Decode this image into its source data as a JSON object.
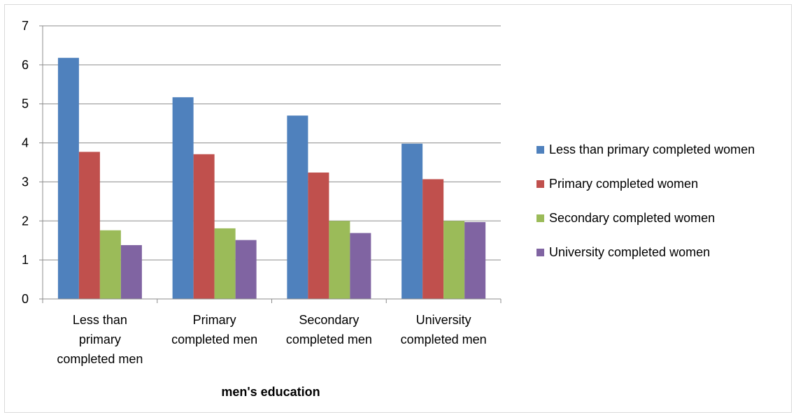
{
  "chart_data": {
    "type": "bar",
    "title": "",
    "xlabel": "men's education",
    "ylabel": "",
    "ylim": [
      0,
      7
    ],
    "yticks": [
      "0",
      "1",
      "2",
      "3",
      "4",
      "5",
      "6",
      "7"
    ],
    "grid": true,
    "legend_position": "right",
    "categories": [
      [
        "Less than",
        "primary",
        "completed men"
      ],
      [
        "Primary",
        "completed men"
      ],
      [
        "Secondary",
        "completed men"
      ],
      [
        "University",
        "completed men"
      ]
    ],
    "series": [
      {
        "name": "Less than primary completed women",
        "color": "#4F81BD",
        "values": [
          6.18,
          5.17,
          4.7,
          3.98
        ]
      },
      {
        "name": "Primary completed women",
        "color": "#C0504D",
        "values": [
          3.77,
          3.71,
          3.24,
          3.07
        ]
      },
      {
        "name": "Secondary completed women",
        "color": "#9BBB59",
        "values": [
          1.76,
          1.81,
          2.0,
          2.0
        ]
      },
      {
        "name": "University completed women",
        "color": "#8064A2",
        "values": [
          1.38,
          1.51,
          1.69,
          1.97
        ]
      }
    ]
  }
}
